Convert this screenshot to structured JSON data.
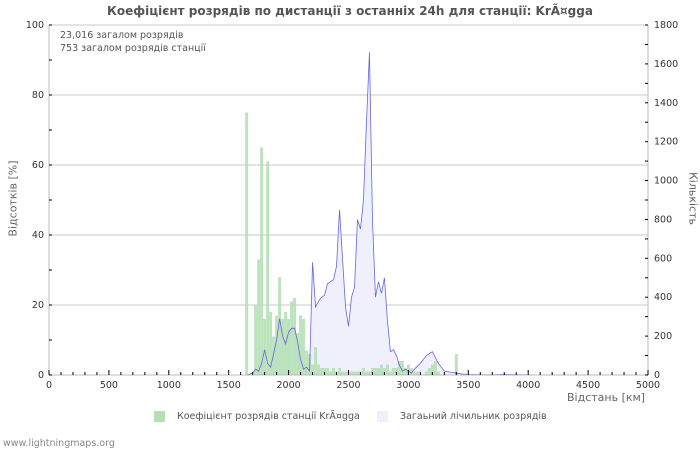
{
  "title": "Коефіцієнт розрядів по дистанції з останніх 24h для станції: KrÃ¤gga",
  "info": {
    "total_strokes": "23,016 загалом розрядів",
    "station_strokes": "753 загалом розрядів станції"
  },
  "axes": {
    "y_left_label": "Відсотків   [%]",
    "y_right_label": "Кількість",
    "x_label": "Відстань   [км]"
  },
  "legend": {
    "station": "Коефіцієнт розрядів станції KrÃ¤gga",
    "total": "Загаьний лічильник розрядів"
  },
  "footer": "www.lightningmaps.org",
  "colors": {
    "bar": "#b5e0b5",
    "line": "#6666dd",
    "area": "#f0f0fc",
    "grid": "#c8c8c8",
    "axis": "#bbbbbb"
  },
  "chart_data": {
    "type": "bar+area",
    "title": "Коефіцієнт розрядів по дистанції з останніх 24h для станції: KrÃ¤gga",
    "xlabel": "Відстань [км]",
    "ylabel": "Відсотків [%]",
    "ylabel_right": "Кількість",
    "xlim": [
      0,
      5000
    ],
    "ylim": [
      0,
      100
    ],
    "ylim_right": [
      0,
      1800
    ],
    "x_ticks": [
      0,
      500,
      1000,
      1500,
      2000,
      2500,
      3000,
      3500,
      4000,
      4500,
      5000
    ],
    "y_ticks": [
      0,
      20,
      40,
      60,
      80,
      100
    ],
    "y_right_ticks": [
      0,
      200,
      400,
      600,
      800,
      1000,
      1200,
      1400,
      1600,
      1800
    ],
    "grid": true,
    "legend_position": "bottom",
    "series": [
      {
        "name": "Коефіцієнт розрядів станції KrÃ¤gga",
        "type": "bar",
        "axis": "left",
        "x": [
          1650,
          1725,
          1750,
          1775,
          1800,
          1825,
          1850,
          1875,
          1900,
          1925,
          1950,
          1975,
          2000,
          2025,
          2050,
          2075,
          2100,
          2125,
          2150,
          2175,
          2200,
          2225,
          2250,
          2275,
          2300,
          2325,
          2350,
          2375,
          2400,
          2425,
          2450,
          2475,
          2500,
          2525,
          2550,
          2575,
          2600,
          2625,
          2650,
          2675,
          2700,
          2725,
          2750,
          2775,
          2800,
          2825,
          2850,
          2875,
          2900,
          2925,
          2950,
          2975,
          3000,
          3025,
          3050,
          3075,
          3150,
          3175,
          3200,
          3225,
          3250,
          3400
        ],
        "values": [
          75,
          20,
          33,
          65,
          16,
          61,
          18,
          11,
          17,
          28,
          16,
          18,
          16,
          21,
          22,
          12,
          17,
          16,
          7,
          6,
          3,
          8,
          3,
          2,
          2,
          2,
          1,
          2,
          1,
          2,
          1,
          1,
          1,
          1,
          1,
          1,
          1,
          2,
          1,
          1,
          2,
          2,
          2,
          3,
          2,
          3,
          1,
          2,
          2,
          4,
          4,
          2,
          3,
          2,
          1,
          1,
          1,
          2,
          3,
          4,
          1,
          6
        ]
      },
      {
        "name": "Загаьний лічильник розрядів",
        "type": "area",
        "axis": "right",
        "x": [
          1650,
          1700,
          1725,
          1750,
          1775,
          1800,
          1825,
          1850,
          1875,
          1900,
          1925,
          1950,
          1975,
          2000,
          2025,
          2050,
          2075,
          2100,
          2125,
          2150,
          2175,
          2200,
          2225,
          2250,
          2275,
          2300,
          2325,
          2350,
          2375,
          2400,
          2425,
          2450,
          2475,
          2500,
          2525,
          2550,
          2575,
          2600,
          2625,
          2650,
          2675,
          2700,
          2725,
          2750,
          2775,
          2800,
          2825,
          2850,
          2875,
          2900,
          2925,
          2950,
          2975,
          3000,
          3025,
          3050,
          3100,
          3150,
          3200,
          3250,
          3300,
          3350,
          3400,
          3450,
          3500,
          3600,
          3700,
          3800,
          4000,
          4100
        ],
        "values": [
          0,
          10,
          30,
          20,
          60,
          130,
          60,
          40,
          110,
          180,
          290,
          200,
          160,
          220,
          240,
          240,
          170,
          80,
          30,
          40,
          20,
          580,
          350,
          380,
          400,
          410,
          470,
          480,
          490,
          560,
          850,
          600,
          350,
          250,
          400,
          450,
          800,
          750,
          900,
          1300,
          1660,
          800,
          400,
          480,
          420,
          500,
          280,
          120,
          130,
          100,
          50,
          20,
          30,
          20,
          10,
          30,
          60,
          100,
          120,
          60,
          20,
          15,
          10,
          5,
          3,
          2,
          1,
          3,
          1,
          0
        ]
      }
    ]
  }
}
